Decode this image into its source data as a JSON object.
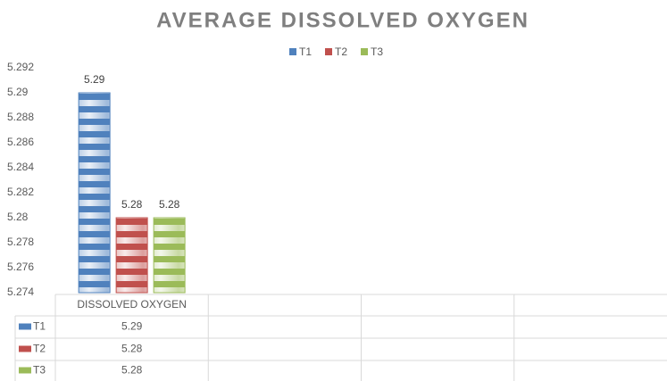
{
  "chart_data": {
    "type": "bar",
    "title": "AVERAGE DISSOLVED OXYGEN",
    "categories": [
      "DISSOLVED OXYGEN",
      null,
      null,
      null
    ],
    "series": [
      {
        "name": "T1",
        "color": "#4f81bd",
        "values": [
          5.29,
          null,
          null,
          null
        ]
      },
      {
        "name": "T2",
        "color": "#c0504d",
        "values": [
          5.28,
          null,
          null,
          null
        ]
      },
      {
        "name": "T3",
        "color": "#9bbb59",
        "values": [
          5.28,
          null,
          null,
          null
        ]
      }
    ],
    "ylim": [
      5.274,
      5.292
    ],
    "yticks": [
      5.274,
      5.276,
      5.278,
      5.28,
      5.282,
      5.284,
      5.286,
      5.288,
      5.29,
      5.292
    ],
    "legend": "top",
    "data_table": true,
    "grid": false
  }
}
